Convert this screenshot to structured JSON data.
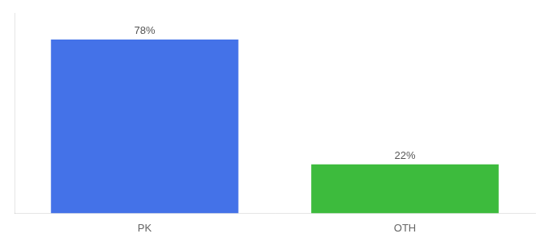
{
  "chart_data": {
    "type": "bar",
    "categories": [
      "PK",
      "OTH"
    ],
    "values": [
      78,
      22
    ],
    "value_labels": [
      "78%",
      "22%"
    ],
    "data_labels": true,
    "colors": [
      "#4472e8",
      "#3dbb3d"
    ],
    "ylim": [
      0,
      90
    ],
    "grid": false,
    "tick_labels": "x"
  }
}
